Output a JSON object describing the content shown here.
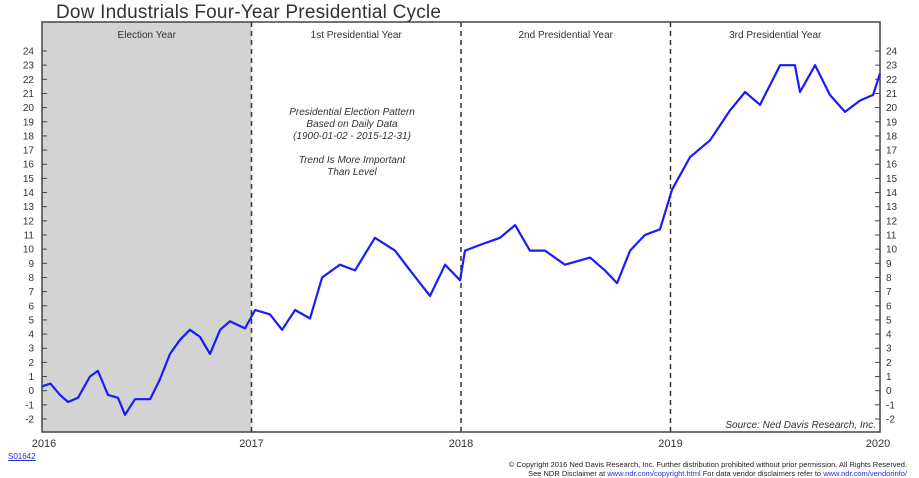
{
  "chart_data": {
    "type": "line",
    "title": "Dow Industrials Four-Year Presidential Cycle",
    "xlim": [
      2016,
      2020
    ],
    "ylim": [
      -3,
      25.5
    ],
    "x_ticks": [
      "2016",
      "2017",
      "2018",
      "2019",
      "2020"
    ],
    "y_ticks": [
      24,
      23,
      22,
      21,
      20,
      19,
      18,
      17,
      16,
      15,
      14,
      13,
      12,
      11,
      10,
      9,
      8,
      7,
      6,
      5,
      4,
      3,
      2,
      1,
      0,
      -1,
      -2
    ],
    "phases": [
      {
        "label": "Election Year",
        "start": 2016,
        "end": 2017,
        "shaded": true
      },
      {
        "label": "1st Presidential Year",
        "start": 2017,
        "end": 2018,
        "shaded": false
      },
      {
        "label": "2nd Presidential Year",
        "start": 2018,
        "end": 2019,
        "shaded": false
      },
      {
        "label": "3rd Presidential Year",
        "start": 2019,
        "end": 2020,
        "shaded": false
      }
    ],
    "annotation": [
      "Presidential Election Pattern",
      "Based on Daily Data",
      "(1900-01-02 - 2015-12-31)",
      "",
      "Trend Is More Important",
      "Than Level"
    ],
    "source": "Source:   Ned Davis Research, Inc.",
    "line_color": "#1a1aff",
    "shade_color": "#d3d3d3",
    "grid": false,
    "x": [
      2016.0,
      2016.04,
      2016.086,
      2016.124,
      2016.172,
      2016.229,
      2016.267,
      2016.315,
      2016.363,
      2016.396,
      2016.444,
      2016.516,
      2016.563,
      2016.611,
      2016.659,
      2016.706,
      2016.754,
      2016.802,
      2016.85,
      2016.897,
      2016.969,
      2017.017,
      2017.088,
      2017.146,
      2017.208,
      2017.279,
      2017.337,
      2017.422,
      2017.494,
      2017.589,
      2017.685,
      2017.757,
      2017.852,
      2017.924,
      2017.995,
      2018.019,
      2018.091,
      2018.186,
      2018.258,
      2018.329,
      2018.401,
      2018.496,
      2018.616,
      2018.687,
      2018.745,
      2018.807,
      2018.878,
      2018.95,
      2019.007,
      2019.093,
      2019.189,
      2019.284,
      2019.356,
      2019.427,
      2019.523,
      2019.594,
      2019.618,
      2019.69,
      2019.761,
      2019.833,
      2019.905,
      2019.967,
      2020.0
    ],
    "y": [
      0.3,
      0.5,
      -0.3,
      -0.8,
      -0.5,
      1.0,
      1.4,
      -0.3,
      -0.5,
      -1.7,
      -0.6,
      -0.6,
      0.8,
      2.6,
      3.6,
      4.3,
      3.8,
      2.6,
      4.3,
      4.9,
      4.4,
      5.7,
      5.4,
      4.3,
      5.7,
      5.1,
      8.0,
      8.9,
      8.5,
      10.8,
      9.9,
      8.5,
      6.7,
      8.9,
      7.8,
      9.9,
      10.3,
      10.8,
      11.7,
      9.9,
      9.9,
      8.9,
      9.4,
      8.5,
      7.6,
      9.9,
      11.0,
      11.4,
      14.2,
      16.5,
      17.7,
      19.8,
      21.1,
      20.2,
      23.0,
      23.0,
      21.1,
      23.0,
      20.9,
      19.7,
      20.5,
      20.9,
      22.4
    ]
  },
  "footer": {
    "code": "S01642",
    "copyright_line1": "© Copyright 2016 Ned Davis Research, Inc. Further distribution prohibited without prior permission. All Rights Reserved.",
    "line2_a": "See NDR Disclaimer at ",
    "line2_link1": "www.ndr.com/copyright.html",
    "line2_b": "  For data vendor disclaimers refer to ",
    "line2_link2": "www.ndr.com/vendorinfo/"
  }
}
